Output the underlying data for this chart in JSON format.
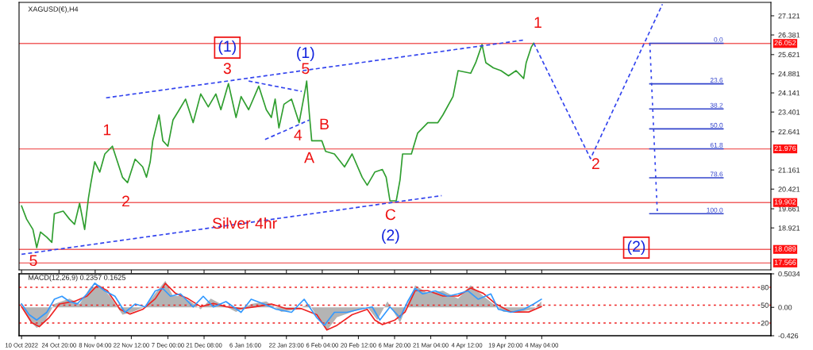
{
  "chart_data": [
    {
      "type": "line",
      "title": "XAGUSD(€),H4",
      "xlim": [
        "2022-10-09",
        "2023-08-03"
      ],
      "ylim": [
        17.3,
        27.64
      ],
      "xticks": [
        {
          "value": "2022-10-10T00:00",
          "label": null
        },
        {
          "value": "2022-10-24T20:00",
          "label": null
        },
        {
          "value": "2022-11-08T04:00",
          "label": null
        },
        {
          "value": "2022-11-22T12:00",
          "label": null
        },
        {
          "value": "2022-12-07T00:00",
          "label": null
        },
        {
          "value": "2022-12-21T08:00",
          "label": null
        },
        {
          "value": "2023-01-06T16:00",
          "label": null
        },
        {
          "value": "2023-01-22T23:00",
          "label": null
        },
        {
          "value": "2023-02-06T04:00",
          "label": null
        },
        {
          "value": "2023-02-20T12:00",
          "label": null
        },
        {
          "value": "2023-03-06T20:00",
          "label": null
        },
        {
          "value": "2023-03-21T04:00",
          "label": null
        },
        {
          "value": "2023-04-04T12:00",
          "label": null
        },
        {
          "value": "2023-04-19T20:00",
          "label": null
        },
        {
          "value": "2023-05-04T04:00",
          "label": null
        }
      ],
      "yticks": [
        27.121,
        26.381,
        25.621,
        24.881,
        24.141,
        23.401,
        22.641,
        21.161,
        20.421,
        19.661,
        18.921
      ],
      "tick_labels": "y",
      "grid": false,
      "series": [
        {
          "color": "#2f9e2f",
          "line_style": "solid",
          "x": [
            "2022-10-10",
            "2022-10-12",
            "2022-10-14T12:00",
            "2022-10-16",
            "2022-10-17T12:00",
            "2022-10-20",
            "2022-10-22",
            "2022-10-23",
            "2022-10-26T12:00",
            "2022-10-29",
            "2022-10-31",
            "2022-11-02",
            "2022-11-04",
            "2022-11-05T12:00",
            "2022-11-06T12:00",
            "2022-11-08",
            "2022-11-10",
            "2022-11-12",
            "2022-11-15",
            "2022-11-17",
            "2022-11-19",
            "2022-11-21",
            "2022-11-24",
            "2022-11-27",
            "2022-11-28T12:00",
            "2022-11-30",
            "2022-12-01",
            "2022-12-03T12:00",
            "2022-12-05",
            "2022-12-07",
            "2022-12-09",
            "2022-12-11T12:00",
            "2022-12-14",
            "2022-12-17",
            "2022-12-20",
            "2022-12-23",
            "2022-12-26",
            "2022-12-28",
            "2022-12-31",
            "2023-01-03",
            "2023-01-05",
            "2023-01-08",
            "2023-01-12",
            "2023-01-15",
            "2023-01-17",
            "2023-01-18T12:00",
            "2023-01-20",
            "2023-01-22",
            "2023-01-25",
            "2023-01-28",
            "2023-01-30T12:00",
            "2023-01-31",
            "2023-02-01",
            "2023-02-02",
            "2023-02-06",
            "2023-02-07T12:00",
            "2023-02-11",
            "2023-02-15",
            "2023-02-18",
            "2023-02-22",
            "2023-02-24",
            "2023-02-27",
            "2023-03-02",
            "2023-03-03T12:00",
            "2023-03-05",
            "2023-03-07T12:00",
            "2023-03-09",
            "2023-03-10",
            "2023-03-13T12:00",
            "2023-03-16",
            "2023-03-20",
            "2023-03-24",
            "2023-03-26",
            "2023-03-30",
            "2023-04-01",
            "2023-04-06",
            "2023-04-08",
            "2023-04-10T12:00",
            "2023-04-12",
            "2023-04-15",
            "2023-04-18",
            "2023-04-21",
            "2023-04-24",
            "2023-04-27",
            "2023-04-28",
            "2023-04-30",
            "2023-05-01"
          ],
          "values": [
            19.77,
            19.26,
            18.86,
            18.16,
            18.76,
            18.56,
            18.36,
            19.47,
            19.57,
            19.26,
            19.06,
            19.87,
            18.86,
            20.07,
            20.67,
            21.48,
            21.08,
            21.78,
            22.08,
            21.48,
            20.88,
            20.67,
            21.58,
            21.28,
            20.88,
            21.48,
            22.29,
            23.29,
            22.29,
            22.08,
            23.09,
            23.49,
            23.9,
            22.99,
            24.1,
            23.6,
            24.1,
            23.49,
            24.5,
            23.19,
            24.0,
            23.49,
            24.4,
            23.49,
            23.19,
            23.9,
            22.79,
            23.7,
            23.9,
            22.99,
            24.3,
            24.6,
            23.39,
            22.29,
            22.29,
            21.88,
            21.78,
            21.28,
            21.78,
            20.88,
            20.57,
            21.08,
            21.18,
            20.88,
            19.97,
            19.97,
            20.78,
            21.78,
            21.78,
            22.59,
            22.99,
            22.99,
            23.29,
            24.0,
            25.0,
            24.9,
            25.31,
            26.01,
            25.31,
            25.11,
            25.0,
            24.8,
            25.0,
            24.7,
            25.31,
            25.91,
            26.06
          ]
        },
        {
          "color": "#3344ee",
          "line_style": "dashed",
          "x": [
            "2022-11-12T12:00",
            "2023-04-27T12:00"
          ],
          "values": [
            23.95,
            26.19
          ]
        },
        {
          "color": "#3344ee",
          "line_style": "dashed",
          "x": [
            "2022-10-10",
            "2023-03-25T12:00"
          ],
          "values": [
            17.9,
            20.17
          ]
        },
        {
          "color": "#3344ee",
          "line_style": "dashed",
          "x": [
            "2023-01-08",
            "2023-01-29"
          ],
          "values": [
            24.6,
            24.2
          ]
        },
        {
          "color": "#3344ee",
          "line_style": "dashed",
          "x": [
            "2023-01-14T12:00",
            "2023-02-01"
          ],
          "values": [
            22.34,
            23.09
          ]
        },
        {
          "color": "#3344ee",
          "line_style": "dashed",
          "x": [
            "2023-05-01",
            "2023-05-23T12:00",
            "2023-06-21"
          ],
          "values": [
            26.06,
            21.6,
            27.57
          ]
        },
        {
          "color": "#3344ee",
          "line_style": "dotted",
          "x": [
            "2023-06-16",
            "2023-06-19"
          ],
          "values": [
            26.06,
            19.47
          ]
        },
        {
          "color": "#3344cc",
          "line_style": "solid",
          "x": [
            "2023-06-16",
            "2023-07-15"
          ],
          "values": [
            26.06,
            26.06
          ]
        },
        {
          "color": "#3344cc",
          "line_style": "solid",
          "x": [
            "2023-06-16",
            "2023-07-15"
          ],
          "values": [
            24.49,
            24.49
          ]
        },
        {
          "color": "#3344cc",
          "line_style": "solid",
          "x": [
            "2023-06-16",
            "2023-07-15"
          ],
          "values": [
            23.52,
            23.52
          ]
        },
        {
          "color": "#3344cc",
          "line_style": "solid",
          "x": [
            "2023-06-16",
            "2023-07-15"
          ],
          "values": [
            22.75,
            22.75
          ]
        },
        {
          "color": "#3344cc",
          "line_style": "solid",
          "x": [
            "2023-06-16",
            "2023-07-15"
          ],
          "values": [
            21.98,
            21.98
          ]
        },
        {
          "color": "#3344cc",
          "line_style": "solid",
          "x": [
            "2023-06-16",
            "2023-07-15"
          ],
          "values": [
            20.86,
            20.86
          ]
        },
        {
          "color": "#3344cc",
          "line_style": "solid",
          "x": [
            "2023-06-16",
            "2023-07-15"
          ],
          "values": [
            19.47,
            19.47
          ]
        }
      ],
      "ref_lines": [
        {
          "axis": "y",
          "value": 26.052,
          "label": "26.052",
          "color": "#f06060"
        },
        {
          "axis": "y",
          "value": 21.976,
          "label": "21.976",
          "color": "#f06060"
        },
        {
          "axis": "y",
          "value": 19.902,
          "label": "19.902",
          "color": "#f06060"
        },
        {
          "axis": "y",
          "value": 18.089,
          "label": "18.089",
          "color": "#f06060"
        },
        {
          "axis": "y",
          "value": 17.566,
          "label": "17.566",
          "color": "#f06060"
        }
      ],
      "annotations": [
        "1",
        "2",
        "3",
        "4",
        "5",
        "(1)",
        "A",
        "B",
        "C",
        "(2)",
        "(1)",
        "1",
        "2",
        "(2)",
        "5",
        "Silver 4hr",
        {
          "text": "0.0",
          "x": "2023-07-15",
          "y": 26.06
        },
        {
          "text": "23.6",
          "x": "2023-07-15",
          "y": 24.49
        },
        {
          "text": "38.2",
          "x": "2023-07-15",
          "y": 23.52
        },
        {
          "text": "50.0",
          "x": "2023-07-15",
          "y": 22.75
        },
        {
          "text": "61.8",
          "x": "2023-07-15",
          "y": 21.98
        },
        {
          "text": "78.6",
          "x": "2023-07-15",
          "y": 20.86
        },
        {
          "text": "100.0",
          "x": "2023-07-15",
          "y": 19.47
        }
      ]
    },
    {
      "type": "line",
      "title": "MACD(12,26,9) 0.2357 0.1625",
      "xlim": [
        "2022-10-09",
        "2023-08-03"
      ],
      "ylim": [
        -0.426,
        0.5034
      ],
      "xticks": [
        {
          "value": "2022-10-10T00:00",
          "label": "10 Oct 2022"
        },
        {
          "value": "2022-10-24T20:00",
          "label": "24 Oct 20:00"
        },
        {
          "value": "2022-11-08T04:00",
          "label": "8 Nov 04:00"
        },
        {
          "value": "2022-11-22T12:00",
          "label": "22 Nov 12:00"
        },
        {
          "value": "2022-12-07T00:00",
          "label": "7 Dec 00:00"
        },
        {
          "value": "2022-12-21T08:00",
          "label": "21 Dec 08:00"
        },
        {
          "value": "2023-01-06T16:00",
          "label": "6 Jan 16:00"
        },
        {
          "value": "2023-01-22T23:00",
          "label": "22 Jan 23:00"
        },
        {
          "value": "2023-02-06T04:00",
          "label": "6 Feb 04:00"
        },
        {
          "value": "2023-02-20T12:00",
          "label": "20 Feb 12:00"
        },
        {
          "value": "2023-03-06T20:00",
          "label": "6 Mar 20:00"
        },
        {
          "value": "2023-03-21T04:00",
          "label": "21 Mar 04:00"
        },
        {
          "value": "2023-04-04T12:00",
          "label": "4 Apr 12:00"
        },
        {
          "value": "2023-04-19T20:00",
          "label": "19 Apr 20:00"
        },
        {
          "value": "2023-05-04T04:00",
          "label": "4 May 04:00"
        }
      ],
      "yticks": [
        0.5034,
        {
          "value": 0,
          "label": "0.00"
        },
        -0.426
      ],
      "y2lim": [
        -1.3,
        102.7
      ],
      "y2ticks": [
        80,
        50,
        20
      ],
      "grid": false,
      "series": [
        {
          "type": "area",
          "color": "#b4b4b4",
          "x": [
            "2022-10-10",
            "2022-10-13",
            "2022-10-16",
            "2022-10-19",
            "2022-10-23",
            "2022-10-29",
            "2022-11-02",
            "2022-11-06",
            "2022-11-10",
            "2022-11-14",
            "2022-11-19",
            "2022-11-23",
            "2022-11-28",
            "2022-12-02",
            "2022-12-06",
            "2022-12-09",
            "2022-12-12",
            "2022-12-16",
            "2022-12-20",
            "2022-12-24",
            "2022-12-28",
            "2023-01-03",
            "2023-01-09",
            "2023-01-15",
            "2023-01-21",
            "2023-01-27",
            "2023-02-01",
            "2023-02-05",
            "2023-02-08",
            "2023-02-12",
            "2023-02-18",
            "2023-02-24",
            "2023-02-28",
            "2023-03-04",
            "2023-03-09",
            "2023-03-12",
            "2023-03-15",
            "2023-03-20",
            "2023-03-26",
            "2023-04-01",
            "2023-04-06",
            "2023-04-11",
            "2023-04-15",
            "2023-04-19",
            "2023-04-25",
            "2023-05-01",
            "2023-05-04"
          ],
          "values": [
            0.01,
            -0.19,
            -0.31,
            -0.23,
            0.05,
            0.13,
            0.05,
            0.29,
            0.33,
            0.17,
            -0.11,
            -0.07,
            0.01,
            0.21,
            0.4,
            0.17,
            0.17,
            0.09,
            -0.03,
            0.13,
            0.05,
            -0.07,
            0.05,
            0.09,
            -0.07,
            -0.03,
            0.05,
            -0.19,
            -0.35,
            -0.15,
            -0.07,
            0.01,
            -0.19,
            0.09,
            -0.23,
            0.05,
            0.33,
            0.21,
            0.25,
            0.13,
            0.33,
            0.17,
            0.05,
            -0.07,
            -0.07,
            -0.03,
            0.09
          ]
        },
        {
          "color": "#ee2222",
          "line_style": "solid",
          "x": [
            "2022-10-10",
            "2022-10-14",
            "2022-10-17",
            "2022-10-21",
            "2022-10-25",
            "2022-10-31",
            "2022-11-05",
            "2022-11-09",
            "2022-11-13",
            "2022-11-18",
            "2022-11-22",
            "2022-11-27",
            "2022-12-02",
            "2022-12-06",
            "2022-12-10",
            "2022-12-15",
            "2022-12-20",
            "2022-12-25",
            "2022-12-30",
            "2023-01-05",
            "2023-01-11",
            "2023-01-17",
            "2023-01-23",
            "2023-01-29",
            "2023-02-04",
            "2023-02-08",
            "2023-02-12",
            "2023-02-18",
            "2023-02-24",
            "2023-02-27",
            "2023-03-02",
            "2023-03-07",
            "2023-03-11",
            "2023-03-15",
            "2023-03-20",
            "2023-03-26",
            "2023-04-01",
            "2023-04-06",
            "2023-04-11",
            "2023-04-16",
            "2023-04-22",
            "2023-04-29",
            "2023-05-04"
          ],
          "values": [
            0.01,
            -0.23,
            -0.29,
            -0.15,
            0.05,
            0.09,
            0.17,
            0.33,
            0.25,
            -0.03,
            -0.1,
            -0.03,
            0.13,
            0.36,
            0.21,
            0.13,
            0.01,
            0.06,
            0.01,
            -0.02,
            0.01,
            0.05,
            -0.02,
            -0.02,
            -0.11,
            -0.34,
            -0.27,
            -0.11,
            -0.03,
            -0.19,
            -0.26,
            -0.19,
            -0.07,
            0.25,
            0.25,
            0.17,
            0.17,
            0.29,
            0.21,
            0.05,
            -0.07,
            -0.07,
            0.01
          ]
        },
        {
          "color": "#3399ff",
          "line_style": "solid",
          "axis": "y2",
          "x": [
            "2022-10-10",
            "2022-10-13",
            "2022-10-16",
            "2022-10-20",
            "2022-10-23",
            "2022-10-26",
            "2022-10-29",
            "2022-11-01",
            "2022-11-05",
            "2022-11-08",
            "2022-11-12",
            "2022-11-16",
            "2022-11-20",
            "2022-11-24",
            "2022-11-28",
            "2022-12-02",
            "2022-12-05",
            "2022-12-08",
            "2022-12-12",
            "2022-12-17",
            "2022-12-21",
            "2022-12-25",
            "2022-12-30",
            "2023-01-05",
            "2023-01-09",
            "2023-01-14",
            "2023-01-19",
            "2023-01-25",
            "2023-01-30",
            "2023-02-04",
            "2023-02-07",
            "2023-02-11",
            "2023-02-16",
            "2023-02-21",
            "2023-02-26",
            "2023-03-01",
            "2023-03-05",
            "2023-03-09",
            "2023-03-12",
            "2023-03-15",
            "2023-03-18",
            "2023-03-23",
            "2023-03-28",
            "2023-04-01",
            "2023-04-05",
            "2023-04-09",
            "2023-04-14",
            "2023-04-17",
            "2023-04-22",
            "2023-04-27",
            "2023-05-01",
            "2023-05-04"
          ],
          "values": [
            52,
            34,
            25,
            38,
            60,
            65,
            56,
            52,
            69,
            87,
            74,
            65,
            38,
            52,
            47,
            74,
            78,
            65,
            69,
            47,
            65,
            47,
            56,
            38,
            60,
            52,
            43,
            38,
            60,
            29,
            16,
            38,
            38,
            43,
            47,
            25,
            47,
            29,
            56,
            78,
            69,
            74,
            65,
            69,
            74,
            60,
            69,
            43,
            38,
            43,
            52,
            60
          ]
        }
      ],
      "ref_lines": [
        {
          "axis": "y2",
          "value": 80,
          "color": "#ee2222",
          "line_style": "dotted"
        },
        {
          "axis": "y2",
          "value": 50,
          "color": "#ee2222",
          "line_style": "dotted"
        },
        {
          "axis": "y2",
          "value": 20,
          "color": "#ee2222",
          "line_style": "dotted"
        }
      ]
    }
  ]
}
